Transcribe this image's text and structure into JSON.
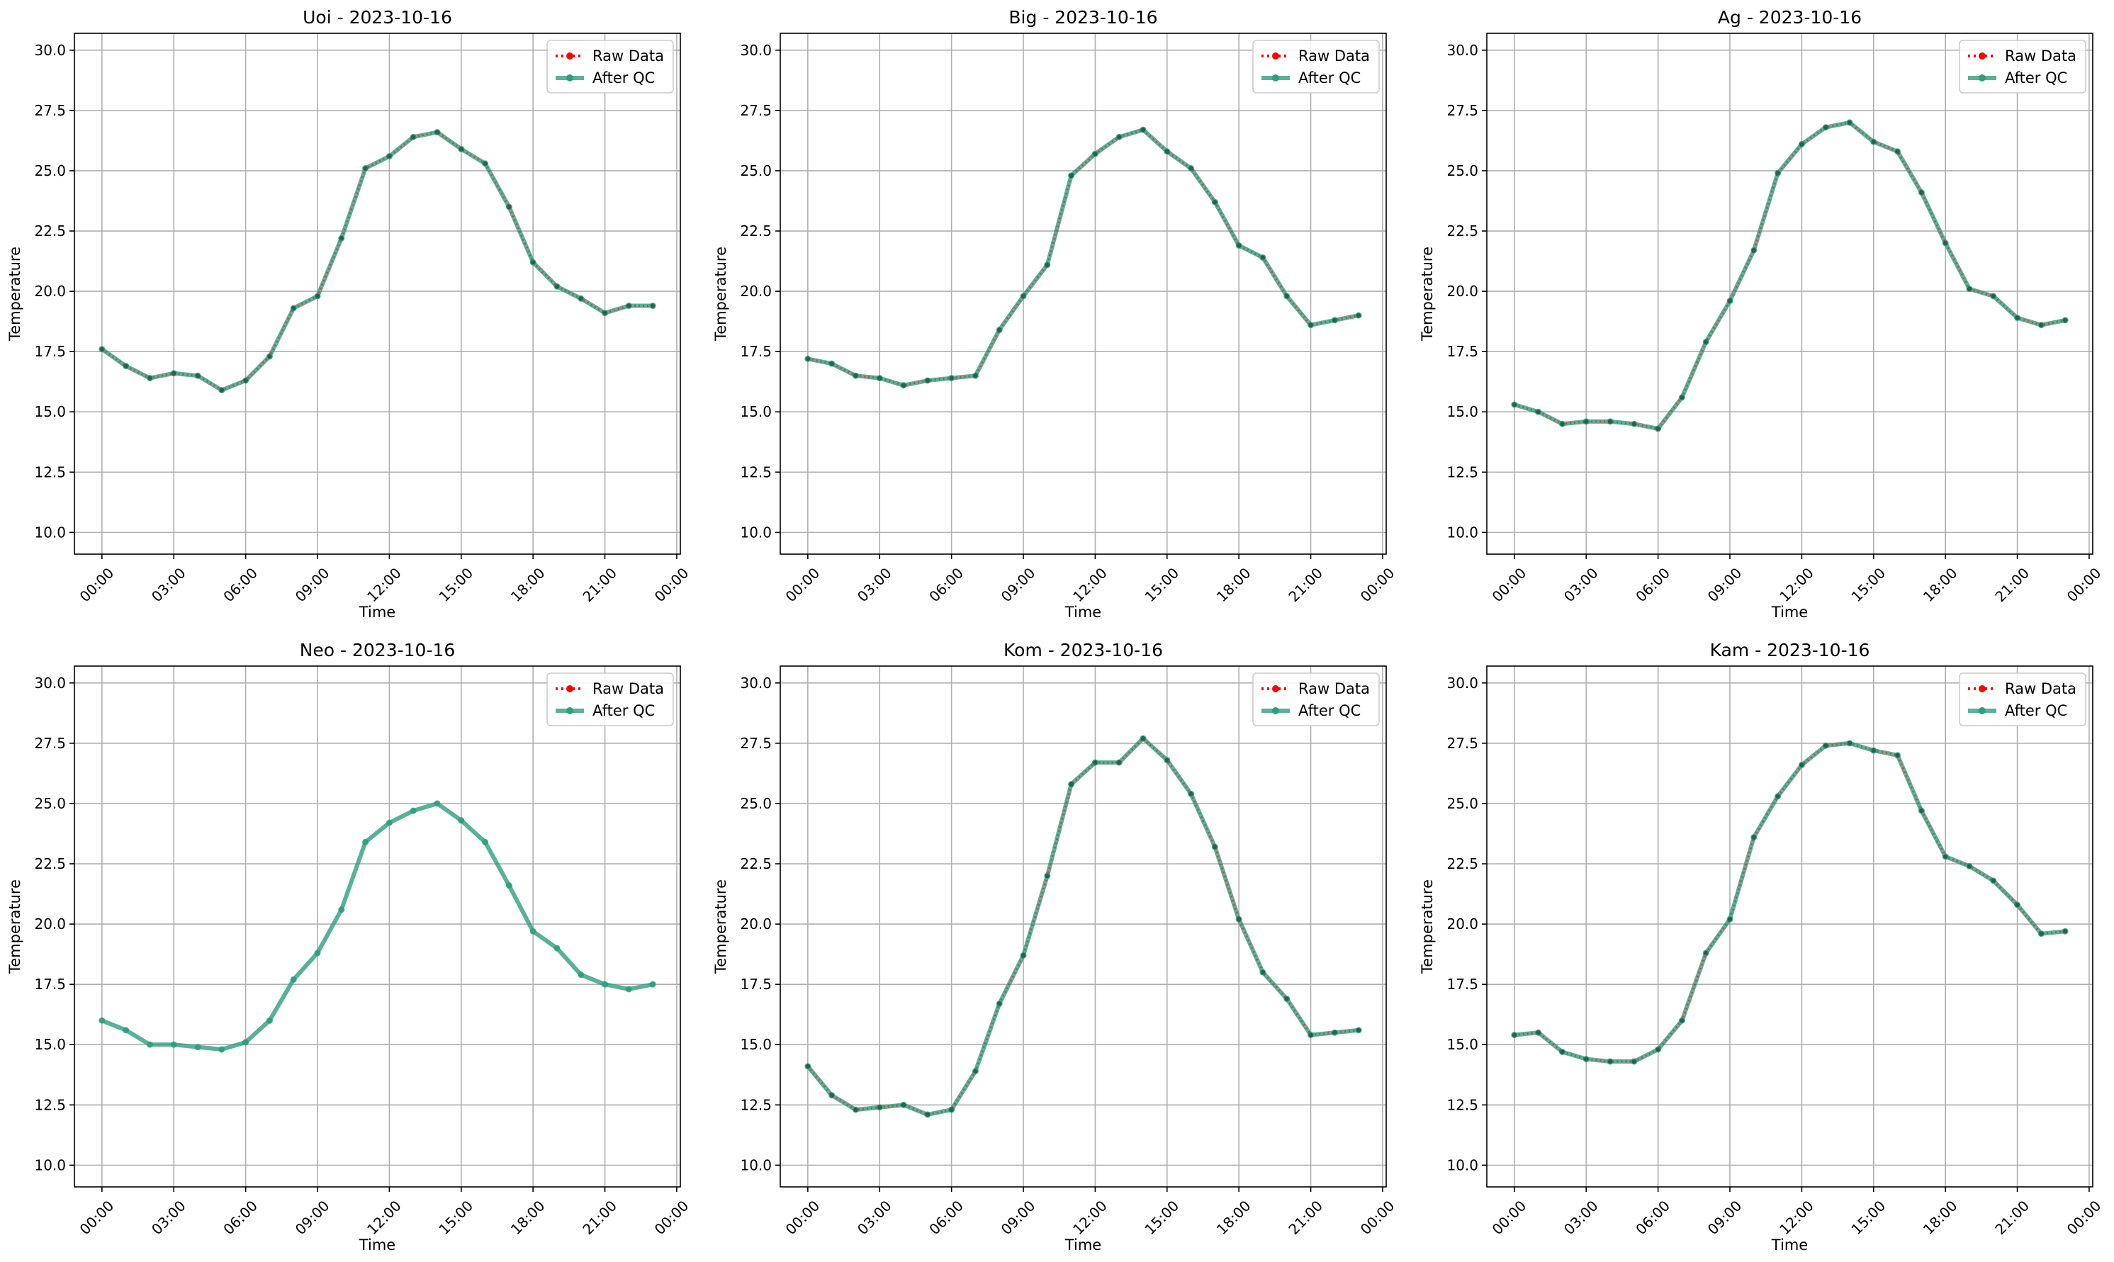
{
  "colors": {
    "raw": "#ff0000",
    "qc": "#2e9e80",
    "grid": "#b0b0b0",
    "axis": "#000000",
    "legend_border": "#cccccc"
  },
  "chart_data": [
    {
      "type": "line",
      "title": "Uoi - 2023-10-16",
      "xlabel": "Time",
      "ylabel": "Temperature",
      "ylim": [
        9.1,
        30.7
      ],
      "grid": true,
      "legend_placement": "upper right",
      "x": [
        "00:00",
        "01:00",
        "02:00",
        "03:00",
        "04:00",
        "05:00",
        "06:00",
        "07:00",
        "08:00",
        "09:00",
        "10:00",
        "11:00",
        "12:00",
        "13:00",
        "14:00",
        "15:00",
        "16:00",
        "17:00",
        "18:00",
        "19:00",
        "20:00",
        "21:00",
        "22:00",
        "23:00"
      ],
      "xticks": [
        "00:00",
        "03:00",
        "06:00",
        "09:00",
        "12:00",
        "15:00",
        "18:00",
        "21:00",
        "00:00"
      ],
      "yticks": [
        "10.0",
        "12.5",
        "15.0",
        "17.5",
        "20.0",
        "22.5",
        "25.0",
        "27.5",
        "30.0"
      ],
      "series": [
        {
          "name": "Raw Data",
          "style": "dotted",
          "marker": "dot",
          "values": [
            17.6,
            16.9,
            16.4,
            16.6,
            16.5,
            15.9,
            16.3,
            17.3,
            19.3,
            19.8,
            22.2,
            25.1,
            25.6,
            26.4,
            26.6,
            25.9,
            25.3,
            23.5,
            21.2,
            20.2,
            19.7,
            19.1,
            19.4,
            19.4
          ]
        },
        {
          "name": "After QC",
          "style": "solid",
          "marker": "dot",
          "values": [
            17.6,
            16.9,
            16.4,
            16.6,
            16.5,
            15.9,
            16.3,
            17.3,
            19.3,
            19.8,
            22.2,
            25.1,
            25.6,
            26.4,
            26.6,
            25.9,
            25.3,
            23.5,
            21.2,
            20.2,
            19.7,
            19.1,
            19.4,
            19.4
          ]
        }
      ]
    },
    {
      "type": "line",
      "title": "Big - 2023-10-16",
      "xlabel": "Time",
      "ylabel": "Temperature",
      "ylim": [
        9.1,
        30.7
      ],
      "grid": true,
      "legend_placement": "upper right",
      "x": [
        "00:00",
        "01:00",
        "02:00",
        "03:00",
        "04:00",
        "05:00",
        "06:00",
        "07:00",
        "08:00",
        "09:00",
        "10:00",
        "11:00",
        "12:00",
        "13:00",
        "14:00",
        "15:00",
        "16:00",
        "17:00",
        "18:00",
        "19:00",
        "20:00",
        "21:00",
        "22:00",
        "23:00"
      ],
      "xticks": [
        "00:00",
        "03:00",
        "06:00",
        "09:00",
        "12:00",
        "15:00",
        "18:00",
        "21:00",
        "00:00"
      ],
      "yticks": [
        "10.0",
        "12.5",
        "15.0",
        "17.5",
        "20.0",
        "22.5",
        "25.0",
        "27.5",
        "30.0"
      ],
      "series": [
        {
          "name": "Raw Data",
          "style": "dotted",
          "marker": "dot",
          "values": [
            17.2,
            17.0,
            16.5,
            16.4,
            16.1,
            16.3,
            16.4,
            16.5,
            18.4,
            19.8,
            21.1,
            24.8,
            25.7,
            26.4,
            26.7,
            25.8,
            25.1,
            23.7,
            21.9,
            21.4,
            19.8,
            18.6,
            18.8,
            19.0
          ]
        },
        {
          "name": "After QC",
          "style": "solid",
          "marker": "dot",
          "values": [
            17.2,
            17.0,
            16.5,
            16.4,
            16.1,
            16.3,
            16.4,
            16.5,
            18.4,
            19.8,
            21.1,
            24.8,
            25.7,
            26.4,
            26.7,
            25.8,
            25.1,
            23.7,
            21.9,
            21.4,
            19.8,
            18.6,
            18.8,
            19.0
          ]
        }
      ]
    },
    {
      "type": "line",
      "title": "Ag - 2023-10-16",
      "xlabel": "Time",
      "ylabel": "Temperature",
      "ylim": [
        9.1,
        30.7
      ],
      "grid": true,
      "legend_placement": "upper right",
      "x": [
        "00:00",
        "01:00",
        "02:00",
        "03:00",
        "04:00",
        "05:00",
        "06:00",
        "07:00",
        "08:00",
        "09:00",
        "10:00",
        "11:00",
        "12:00",
        "13:00",
        "14:00",
        "15:00",
        "16:00",
        "17:00",
        "18:00",
        "19:00",
        "20:00",
        "21:00",
        "22:00",
        "23:00"
      ],
      "xticks": [
        "00:00",
        "03:00",
        "06:00",
        "09:00",
        "12:00",
        "15:00",
        "18:00",
        "21:00",
        "00:00"
      ],
      "yticks": [
        "10.0",
        "12.5",
        "15.0",
        "17.5",
        "20.0",
        "22.5",
        "25.0",
        "27.5",
        "30.0"
      ],
      "series": [
        {
          "name": "Raw Data",
          "style": "dotted",
          "marker": "dot",
          "values": [
            15.3,
            15.0,
            14.5,
            14.6,
            14.6,
            14.5,
            14.3,
            15.6,
            17.9,
            19.6,
            21.7,
            24.9,
            26.1,
            26.8,
            27.0,
            26.2,
            25.8,
            24.1,
            22.0,
            20.1,
            19.8,
            18.9,
            18.6,
            18.8
          ]
        },
        {
          "name": "After QC",
          "style": "solid",
          "marker": "dot",
          "values": [
            15.3,
            15.0,
            14.5,
            14.6,
            14.6,
            14.5,
            14.3,
            15.6,
            17.9,
            19.6,
            21.7,
            24.9,
            26.1,
            26.8,
            27.0,
            26.2,
            25.8,
            24.1,
            22.0,
            20.1,
            19.8,
            18.9,
            18.6,
            18.8
          ]
        }
      ]
    },
    {
      "type": "line",
      "title": "Neo - 2023-10-16",
      "xlabel": "Time",
      "ylabel": "Temperature",
      "ylim": [
        9.1,
        30.7
      ],
      "grid": true,
      "legend_placement": "upper right",
      "x": [
        "00:00",
        "01:00",
        "02:00",
        "03:00",
        "04:00",
        "05:00",
        "06:00",
        "07:00",
        "08:00",
        "09:00",
        "10:00",
        "11:00",
        "12:00",
        "13:00",
        "14:00",
        "15:00",
        "16:00",
        "17:00",
        "18:00",
        "19:00",
        "20:00",
        "21:00",
        "22:00",
        "23:00"
      ],
      "xticks": [
        "00:00",
        "03:00",
        "06:00",
        "09:00",
        "12:00",
        "15:00",
        "18:00",
        "21:00",
        "00:00"
      ],
      "yticks": [
        "10.0",
        "12.5",
        "15.0",
        "17.5",
        "20.0",
        "22.5",
        "25.0",
        "27.5",
        "30.0"
      ],
      "series": [
        {
          "name": "Raw Data",
          "style": "dotted",
          "marker": "dot",
          "values": [
            16.0,
            15.6,
            15.0,
            15.0,
            14.9,
            14.8,
            15.1,
            16.0,
            17.7,
            18.8,
            20.6,
            23.4,
            24.2,
            24.7,
            25.0,
            24.3,
            23.4,
            21.6,
            19.7,
            19.0,
            17.9,
            17.5,
            17.3,
            17.5
          ]
        },
        {
          "name": "After QC",
          "style": "solid",
          "marker": "dot",
          "values": [
            16.0,
            15.6,
            15.0,
            15.0,
            14.9,
            14.8,
            15.1,
            16.0,
            17.7,
            18.8,
            20.6,
            23.4,
            24.2,
            24.7,
            25.0,
            24.3,
            23.4,
            21.6,
            19.7,
            19.0,
            17.9,
            17.5,
            17.3,
            17.5
          ]
        }
      ]
    },
    {
      "type": "line",
      "title": "Kom - 2023-10-16",
      "xlabel": "Time",
      "ylabel": "Temperature",
      "ylim": [
        9.1,
        30.7
      ],
      "grid": true,
      "legend_placement": "upper right",
      "x": [
        "00:00",
        "01:00",
        "02:00",
        "03:00",
        "04:00",
        "05:00",
        "06:00",
        "07:00",
        "08:00",
        "09:00",
        "10:00",
        "11:00",
        "12:00",
        "13:00",
        "14:00",
        "15:00",
        "16:00",
        "17:00",
        "18:00",
        "19:00",
        "20:00",
        "21:00",
        "22:00",
        "23:00"
      ],
      "xticks": [
        "00:00",
        "03:00",
        "06:00",
        "09:00",
        "12:00",
        "15:00",
        "18:00",
        "21:00",
        "00:00"
      ],
      "yticks": [
        "10.0",
        "12.5",
        "15.0",
        "17.5",
        "20.0",
        "22.5",
        "25.0",
        "27.5",
        "30.0"
      ],
      "series": [
        {
          "name": "Raw Data",
          "style": "dotted",
          "marker": "dot",
          "values": [
            14.1,
            12.9,
            12.3,
            12.4,
            12.5,
            12.1,
            12.3,
            13.9,
            16.7,
            18.7,
            22.0,
            25.8,
            26.7,
            26.7,
            27.7,
            26.8,
            25.4,
            23.2,
            20.2,
            18.0,
            16.9,
            15.4,
            15.5,
            15.6
          ]
        },
        {
          "name": "After QC",
          "style": "solid",
          "marker": "dot",
          "values": [
            14.1,
            12.9,
            12.3,
            12.4,
            12.5,
            12.1,
            12.3,
            13.9,
            16.7,
            18.7,
            22.0,
            25.8,
            26.7,
            26.7,
            27.7,
            26.8,
            25.4,
            23.2,
            20.2,
            18.0,
            16.9,
            15.4,
            15.5,
            15.6
          ]
        }
      ]
    },
    {
      "type": "line",
      "title": "Kam - 2023-10-16",
      "xlabel": "Time",
      "ylabel": "Temperature",
      "ylim": [
        9.1,
        30.7
      ],
      "grid": true,
      "legend_placement": "upper right",
      "x": [
        "00:00",
        "01:00",
        "02:00",
        "03:00",
        "04:00",
        "05:00",
        "06:00",
        "07:00",
        "08:00",
        "09:00",
        "10:00",
        "11:00",
        "12:00",
        "13:00",
        "14:00",
        "15:00",
        "16:00",
        "17:00",
        "18:00",
        "19:00",
        "20:00",
        "21:00",
        "22:00",
        "23:00"
      ],
      "xticks": [
        "00:00",
        "03:00",
        "06:00",
        "09:00",
        "12:00",
        "15:00",
        "18:00",
        "21:00",
        "00:00"
      ],
      "yticks": [
        "10.0",
        "12.5",
        "15.0",
        "17.5",
        "20.0",
        "22.5",
        "25.0",
        "27.5",
        "30.0"
      ],
      "series": [
        {
          "name": "Raw Data",
          "style": "dotted",
          "marker": "dot",
          "values": [
            15.4,
            15.5,
            14.7,
            14.4,
            14.3,
            14.3,
            14.8,
            16.0,
            18.8,
            20.2,
            23.6,
            25.3,
            26.6,
            27.4,
            27.5,
            27.2,
            27.0,
            24.7,
            22.8,
            22.4,
            21.8,
            20.8,
            19.6,
            19.7
          ]
        },
        {
          "name": "After QC",
          "style": "solid",
          "marker": "dot",
          "values": [
            15.4,
            15.5,
            14.7,
            14.4,
            14.3,
            14.3,
            14.8,
            16.0,
            18.8,
            20.2,
            23.6,
            25.3,
            26.6,
            27.4,
            27.5,
            27.2,
            27.0,
            24.7,
            22.8,
            22.4,
            21.8,
            20.8,
            19.6,
            19.7
          ]
        }
      ]
    }
  ]
}
